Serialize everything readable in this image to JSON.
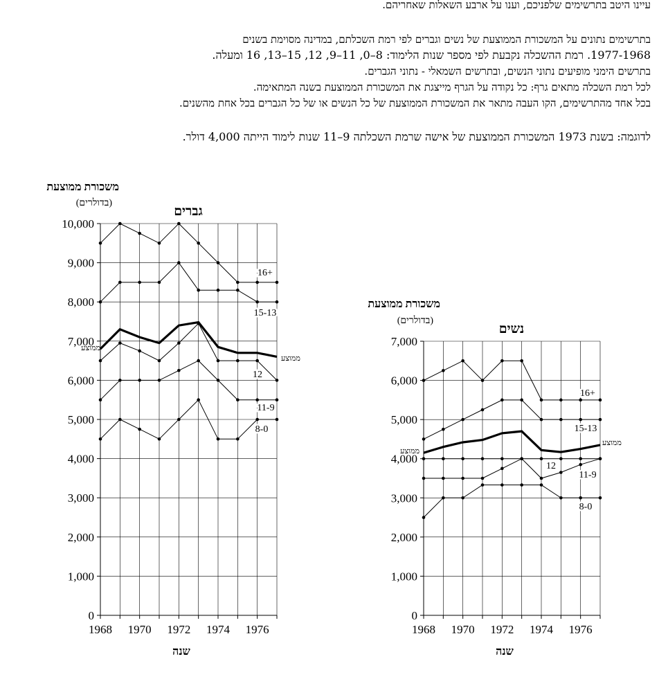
{
  "instructions": {
    "line1": "עיינו היטב בתרשימים שלפניכם, וענו על ארבע השאלות שאחריהם.",
    "line2": "בתרשימים נתונים על המשכורת הממוצעת של נשים וגברים לפי רמת השכלתם, במדינה מסוימת בשנים",
    "line3": "1977-1968.  רמת ההשכלה נקבעת לפי מספר שנות הלימוד:  8–0, 11–9, 12, 15–13, 16 ומעלה.",
    "line4": "בתרשים הימני מופיעים נתוני הנשים, ובתרשים השמאלי - נתוני הגברים.",
    "line5": "לכל רמת השכלה מתאים גרף: כל נקודה על הגרף מייצגת את המשכורת הממוצעת בשנה המתאימה.",
    "line6": "בכל אחד מהתרשימים, הקו העבה מתאר את המשכורת הממוצעת של כל הנשים או של כל הגברים בכל אחת מהשנים.",
    "line7": "לדוגמה: בשנת 1973 המשכורת הממוצעת של אישה שרמת השכלתה 9–11 שנות לימוד הייתה 4,000 דולר."
  },
  "chart_data": [
    {
      "type": "line",
      "title": "גברים",
      "ylabel": "משכורת ממוצעת",
      "ylabel_unit": "(בדולרים)",
      "xlabel": "שנה",
      "x": [
        1968,
        1969,
        1970,
        1971,
        1972,
        1973,
        1974,
        1975,
        1976,
        1977
      ],
      "x_ticks": [
        "1968",
        "1970",
        "1972",
        "1974",
        "1976"
      ],
      "y_ticks": [
        "0",
        "1,000",
        "2,000",
        "3,000",
        "4,000",
        "5,000",
        "6,000",
        "7,000",
        "8,000",
        "9,000",
        "10,000"
      ],
      "ylim": [
        0,
        10000
      ],
      "series": [
        {
          "name": "16+",
          "values": [
            9500,
            10000,
            9750,
            9500,
            10000,
            9500,
            9000,
            8500,
            8500,
            8500
          ]
        },
        {
          "name": "15-13",
          "values": [
            8000,
            8500,
            8500,
            8500,
            9000,
            8300,
            8300,
            8300,
            8000,
            8000
          ]
        },
        {
          "name": "ממוצע",
          "values": [
            6800,
            7300,
            7100,
            6950,
            7400,
            7480,
            6850,
            6700,
            6700,
            6600
          ],
          "bold": true
        },
        {
          "name": "12",
          "values": [
            6500,
            6950,
            6750,
            6500,
            6950,
            7450,
            6500,
            6500,
            6500,
            6000
          ]
        },
        {
          "name": "11-9",
          "values": [
            5500,
            6000,
            6000,
            6000,
            6250,
            6500,
            6000,
            5500,
            5500,
            5500
          ]
        },
        {
          "name": "8-0",
          "values": [
            4500,
            5000,
            4750,
            4500,
            5000,
            5500,
            4500,
            4500,
            5000,
            5000
          ]
        }
      ],
      "left_label": "ממוצע",
      "right_label": "ממוצע"
    },
    {
      "type": "line",
      "title": "נשים",
      "ylabel": "משכורת ממוצעת",
      "ylabel_unit": "(בדולרים)",
      "xlabel": "שנה",
      "x": [
        1968,
        1969,
        1970,
        1971,
        1972,
        1973,
        1974,
        1975,
        1976,
        1977
      ],
      "x_ticks": [
        "1968",
        "1970",
        "1972",
        "1974",
        "1976"
      ],
      "y_ticks": [
        "0",
        "1,000",
        "2,000",
        "3,000",
        "4,000",
        "5,000",
        "6,000",
        "7,000"
      ],
      "ylim": [
        0,
        7000
      ],
      "series": [
        {
          "name": "16+",
          "values": [
            6000,
            6250,
            6500,
            6000,
            6500,
            6500,
            5500,
            5500,
            5500,
            5500
          ]
        },
        {
          "name": "15-13",
          "values": [
            4500,
            4750,
            5000,
            5250,
            5500,
            5500,
            5000,
            5000,
            5000,
            5000
          ]
        },
        {
          "name": "ממוצע",
          "values": [
            4150,
            4300,
            4420,
            4480,
            4650,
            4700,
            4220,
            4170,
            4250,
            4350
          ],
          "bold": true
        },
        {
          "name": "12",
          "values": [
            4000,
            4000,
            4000,
            4000,
            4000,
            4000,
            4000,
            4000,
            4000,
            4000
          ]
        },
        {
          "name": "11-9",
          "values": [
            3500,
            3500,
            3500,
            3500,
            3750,
            4000,
            3500,
            3650,
            3850,
            4000
          ]
        },
        {
          "name": "8-0",
          "values": [
            2500,
            3000,
            3000,
            3330,
            3330,
            3330,
            3330,
            3000,
            3000,
            3000
          ]
        }
      ],
      "left_label": "ממוצע",
      "right_label": "ממוצע"
    }
  ]
}
